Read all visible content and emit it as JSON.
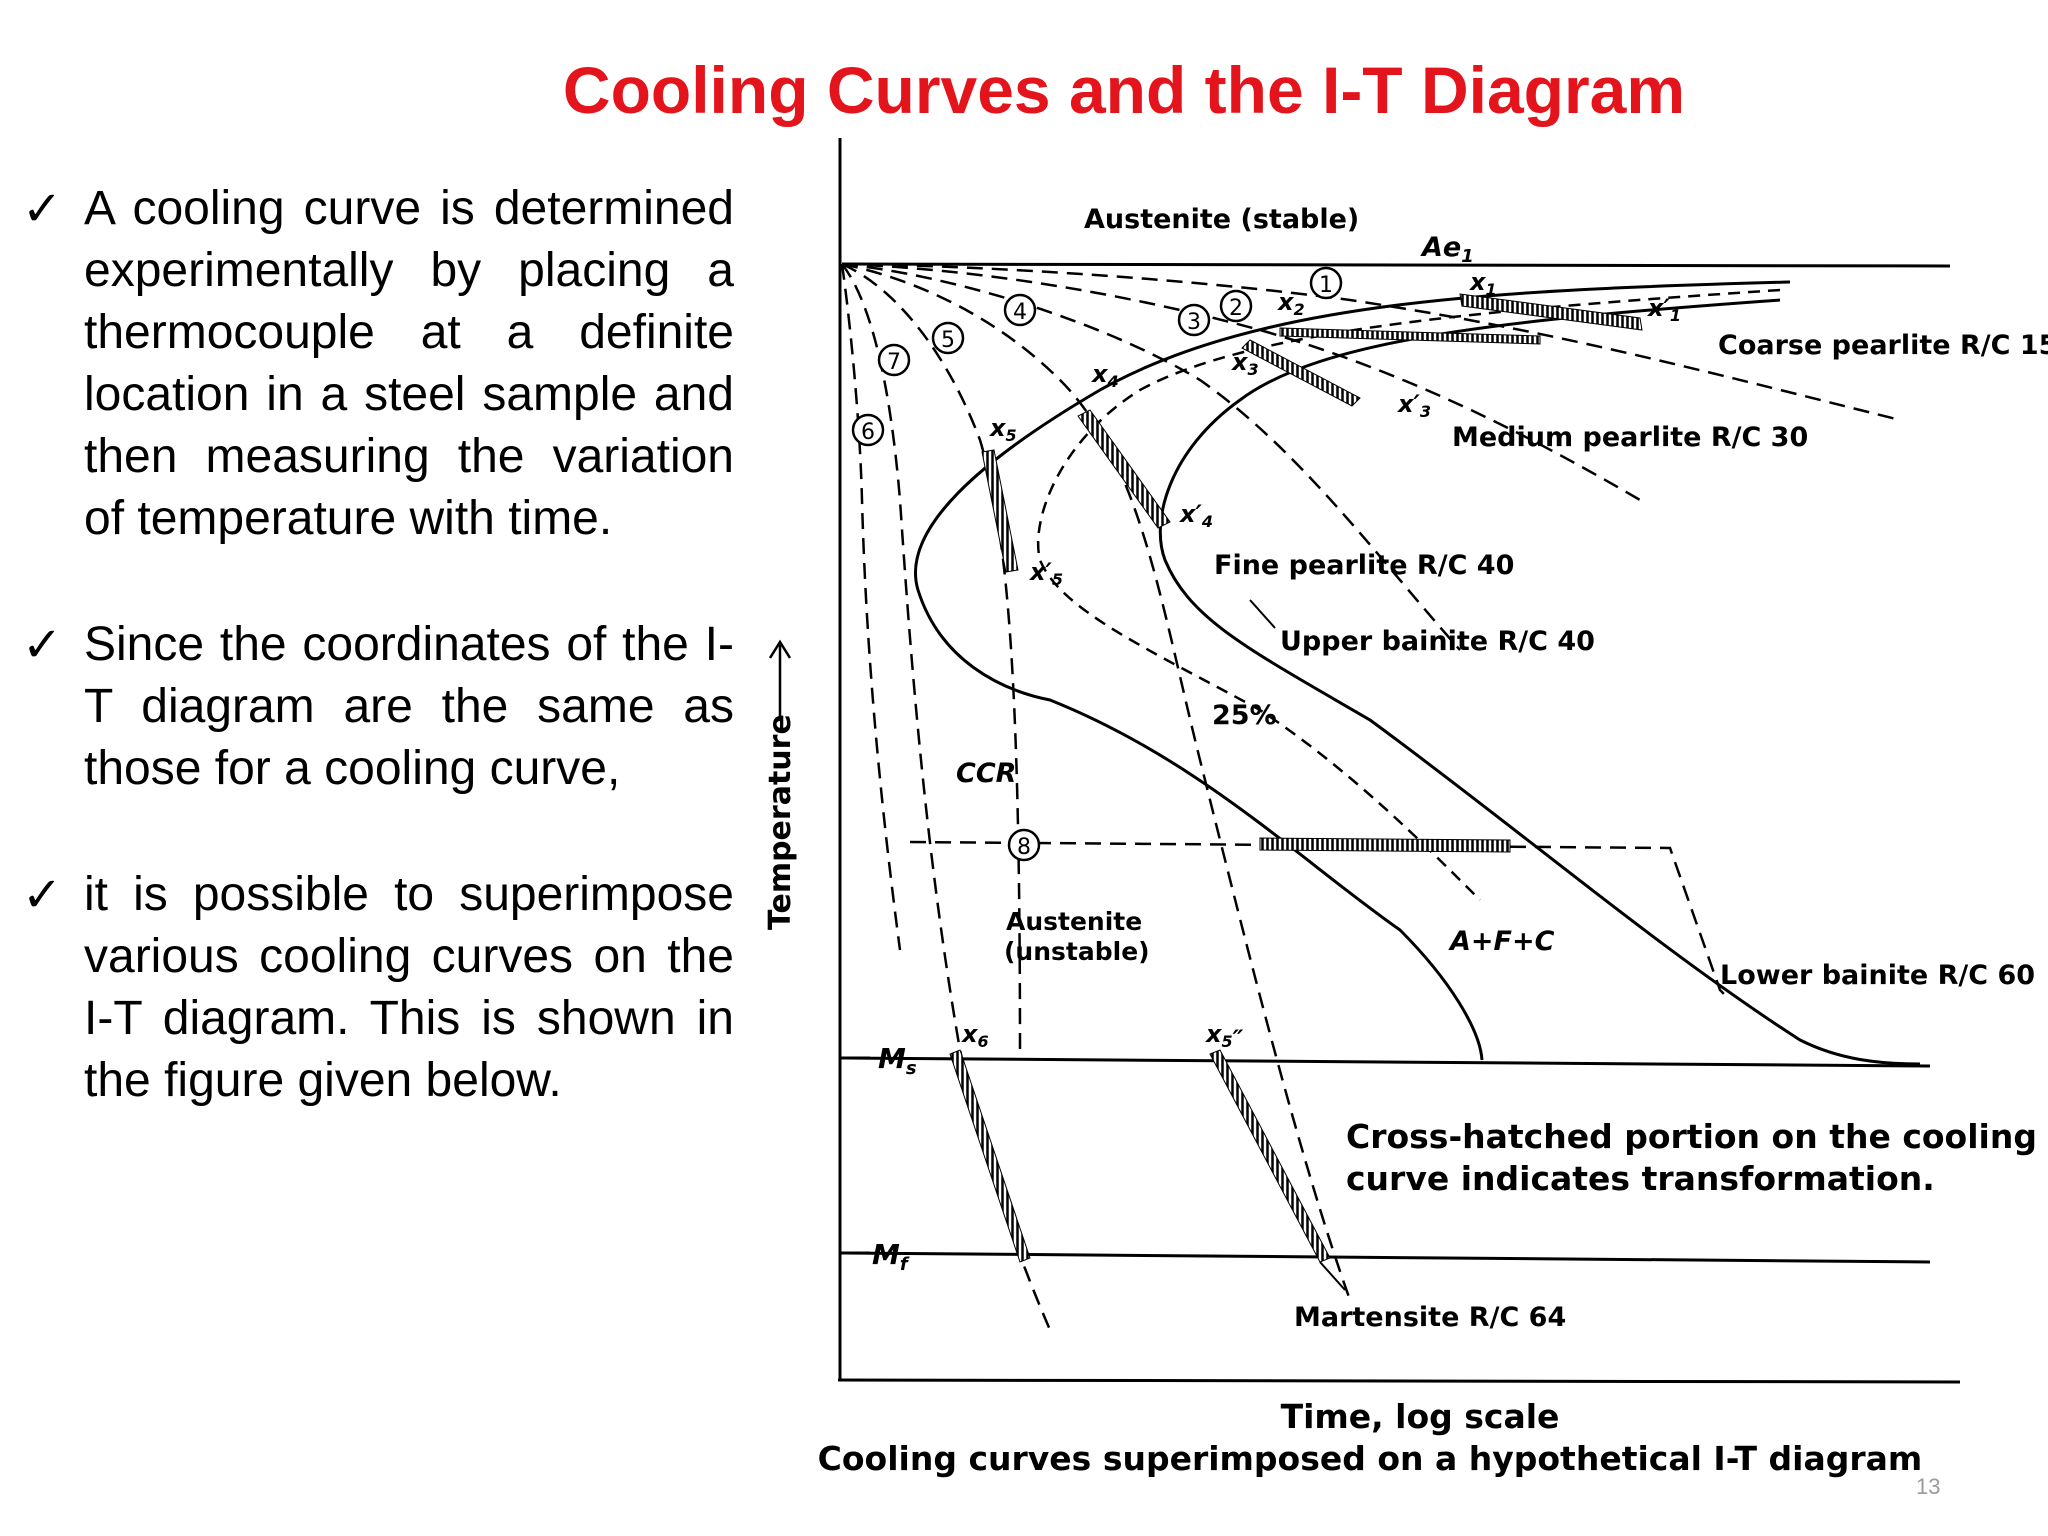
{
  "slide": {
    "title": "Cooling Curves and the I-T Diagram",
    "bullets": [
      "A cooling curve is determined experimentally by placing a thermocouple at a definite location in a steel sample and then measuring the variation of temperature with time.",
      "Since the coordinates of the I-T diagram are the same as those for a cooling curve,",
      "it is possible to superimpose various cooling curves on the I-T diagram. This is shown in the figure given below."
    ],
    "check_glyph": "✓",
    "page_number": "13"
  },
  "diagram": {
    "y_axis_label": "Temperature",
    "x_axis_label": "Time, log scale",
    "caption": "Cooling curves superimposed on a hypothetical I-T diagram",
    "note_line1": "Cross-hatched portion on the cooling",
    "note_line2": "curve indicates transformation.",
    "labels": {
      "austenite_stable": "Austenite (stable)",
      "ae1": "Ae",
      "ae1_sub": "1",
      "coarse_pearlite": "Coarse pearlite R/C 15",
      "medium_pearlite": "Medium pearlite R/C 30",
      "fine_pearlite": "Fine pearlite R/C 40",
      "upper_bainite": "Upper bainite R/C 40",
      "lower_bainite": "Lower bainite R/C 60",
      "martensite": "Martensite R/C 64",
      "austenite_unstable_1": "Austenite",
      "austenite_unstable_2": "(unstable)",
      "ccr": "CCR",
      "pct25": "25%",
      "afc": "A+F+C",
      "ms": "M",
      "ms_sub": "s",
      "mf": "M",
      "mf_sub": "f"
    },
    "curve_numbers": [
      "1",
      "2",
      "3",
      "4",
      "5",
      "6",
      "7",
      "8"
    ],
    "x_points": {
      "x1": "x",
      "x1_sub": "1",
      "x1p": "x",
      "x1p_sub": "1",
      "x2": "x",
      "x2_sub": "2",
      "x3": "x",
      "x3_sub": "3",
      "x3p": "x",
      "x3p_sub": "3",
      "x4": "x",
      "x4_sub": "4",
      "x4p": "x",
      "x4p_sub": "4",
      "x5": "x",
      "x5_sub": "5",
      "x5p": "x",
      "x5p_sub": "5",
      "x5pp": "x",
      "x5pp_sub": "5",
      "x6": "x",
      "x6_sub": "6"
    },
    "prime": "′",
    "double_prime": "″"
  }
}
